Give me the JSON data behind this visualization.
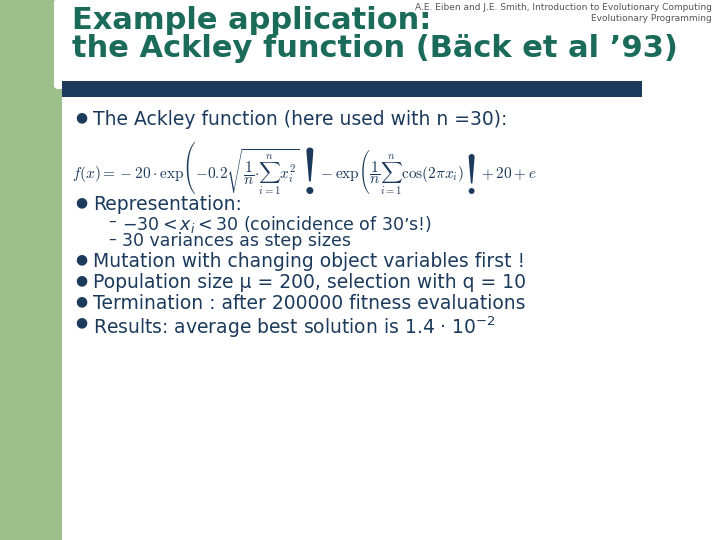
{
  "header_text1": "A.E. Eiben and J.E. Smith, Introduction to Evolutionary Computing",
  "header_text2": "Evolutionary Programming",
  "title_line1": "Example application:",
  "title_line2": "the Ackley function (Bäck et al ’93)",
  "green_sidebar_color": "#9DC08B",
  "title_color": "#1A6B5A",
  "navy_bar_color": "#1B3A5C",
  "bg_color": "#FFFFFF",
  "header_color": "#555555",
  "bullet_color": "#1B3A5C",
  "bullet1": "The Ackley function (here used with n =30):",
  "bullet2": "Representation:",
  "sub_bullet1": "-30 < x",
  "sub_bullet1_sub": "i",
  "sub_bullet1_end": " < 30 (coincidence of 30’s!)",
  "sub_bullet2": "30 variances as step sizes",
  "bullet3": "Mutation with changing object variables first !",
  "bullet4": "Population size μ = 200, selection with q = 10",
  "bullet5": "Termination : after 200000 fitness evaluations",
  "bullet6": "Results: average best solution is 1.4 · 10"
}
